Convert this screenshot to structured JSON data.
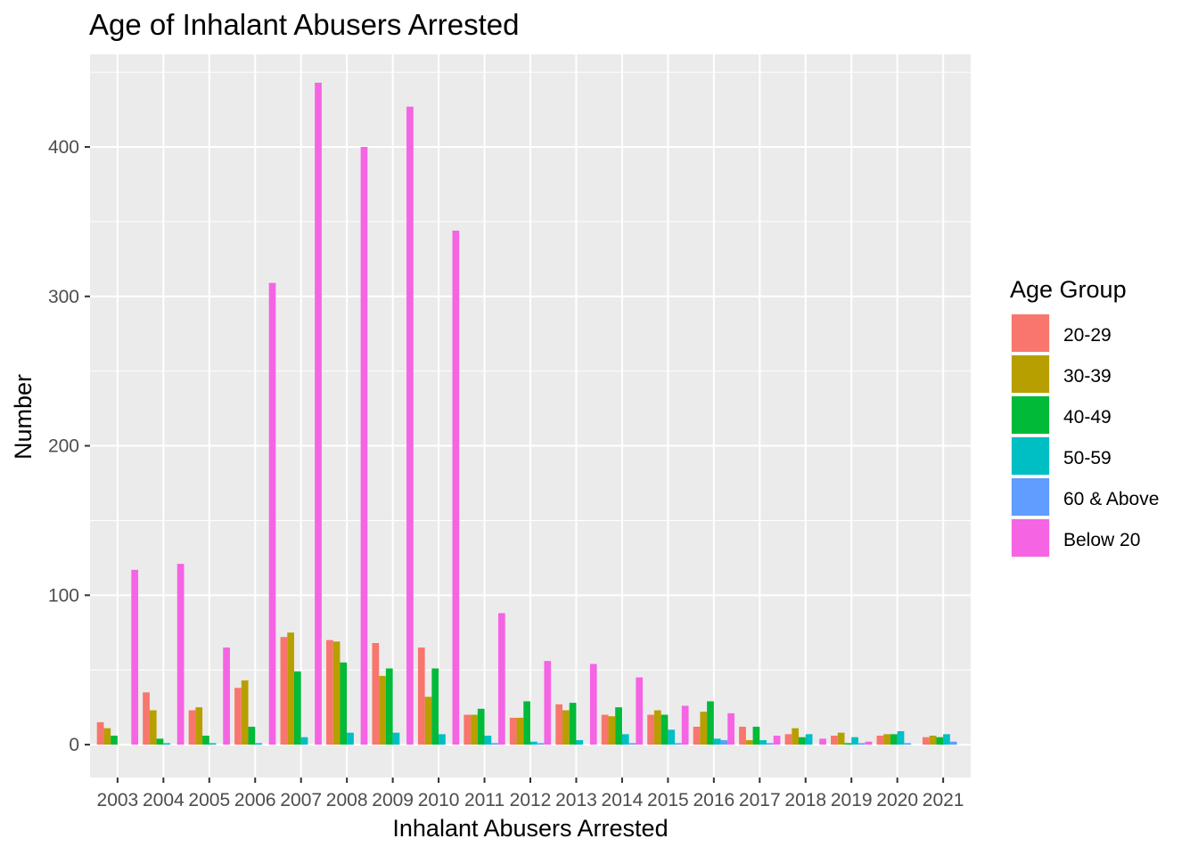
{
  "chart_data": {
    "type": "bar",
    "title": "Age of Inhalant Abusers Arrested",
    "xlabel": "Inhalant Abusers Arrested",
    "ylabel": "Number",
    "ylim": [
      -22,
      462
    ],
    "y_ticks": [
      0,
      100,
      200,
      300,
      400
    ],
    "grid": true,
    "legend_title": "Age Group",
    "legend_position": "right",
    "categories": [
      "2003",
      "2004",
      "2005",
      "2006",
      "2007",
      "2008",
      "2009",
      "2010",
      "2011",
      "2012",
      "2013",
      "2014",
      "2015",
      "2016",
      "2017",
      "2018",
      "2019",
      "2020",
      "2021"
    ],
    "series": [
      {
        "name": "20-29",
        "color": "#F8766D",
        "values": [
          15,
          35,
          23,
          38,
          72,
          70,
          68,
          65,
          20,
          18,
          27,
          20,
          20,
          12,
          12,
          7,
          6,
          6,
          5
        ]
      },
      {
        "name": "30-39",
        "color": "#B79F00",
        "values": [
          11,
          23,
          25,
          43,
          75,
          69,
          46,
          32,
          20,
          18,
          23,
          19,
          23,
          22,
          3,
          11,
          8,
          7,
          6
        ]
      },
      {
        "name": "40-49",
        "color": "#00BA38",
        "values": [
          6,
          4,
          6,
          12,
          49,
          55,
          51,
          51,
          24,
          29,
          28,
          25,
          20,
          29,
          12,
          5,
          1,
          7,
          5
        ]
      },
      {
        "name": "50-59",
        "color": "#00BFC4",
        "values": [
          0,
          1,
          1,
          1,
          5,
          8,
          8,
          7,
          6,
          2,
          3,
          7,
          10,
          4,
          3,
          7,
          5,
          9,
          7
        ]
      },
      {
        "name": "60 & Above",
        "color": "#619CFF",
        "values": [
          0,
          0,
          0,
          0,
          0,
          0,
          0,
          0,
          1,
          1,
          0,
          1,
          1,
          3,
          1,
          0,
          1,
          1,
          2
        ]
      },
      {
        "name": "Below 20",
        "color": "#F564E3",
        "values": [
          117,
          121,
          65,
          309,
          443,
          400,
          427,
          344,
          88,
          56,
          54,
          45,
          26,
          21,
          6,
          4,
          2,
          0,
          0
        ]
      }
    ]
  }
}
